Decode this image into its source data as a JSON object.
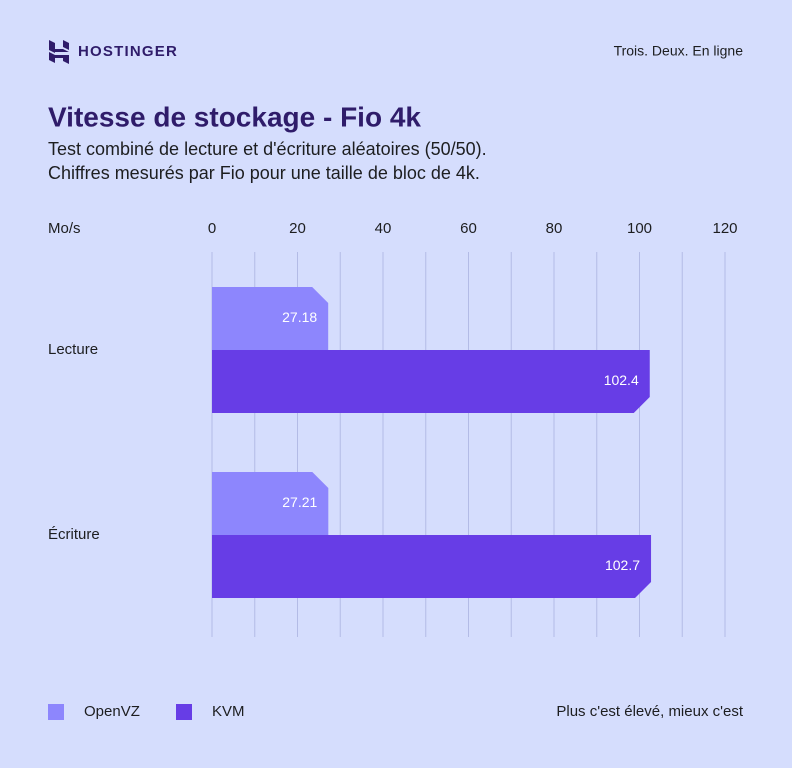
{
  "brand": "HOSTINGER",
  "tagline": "Trois. Deux. En ligne",
  "chart_data": {
    "type": "barh",
    "title": "Vitesse de stockage - Fio 4k",
    "subtitle": [
      "Test combiné de lecture et d'écriture aléatoires (50/50).",
      "Chiffres mesurés par Fio pour une taille de bloc de 4k."
    ],
    "x_label": "Mo/s",
    "categories": [
      "Lecture",
      "Écriture"
    ],
    "series": [
      {
        "name": "OpenVZ",
        "color": "#8d86fd",
        "values": [
          27.18,
          27.21
        ]
      },
      {
        "name": "KVM",
        "color": "#673de6",
        "values": [
          102.4,
          102.7
        ]
      }
    ],
    "xlim": [
      0,
      120
    ],
    "xticks": [
      0,
      20,
      40,
      60,
      80,
      100,
      120
    ],
    "grid": true,
    "note": "Plus c'est élevé, mieux c'est"
  }
}
